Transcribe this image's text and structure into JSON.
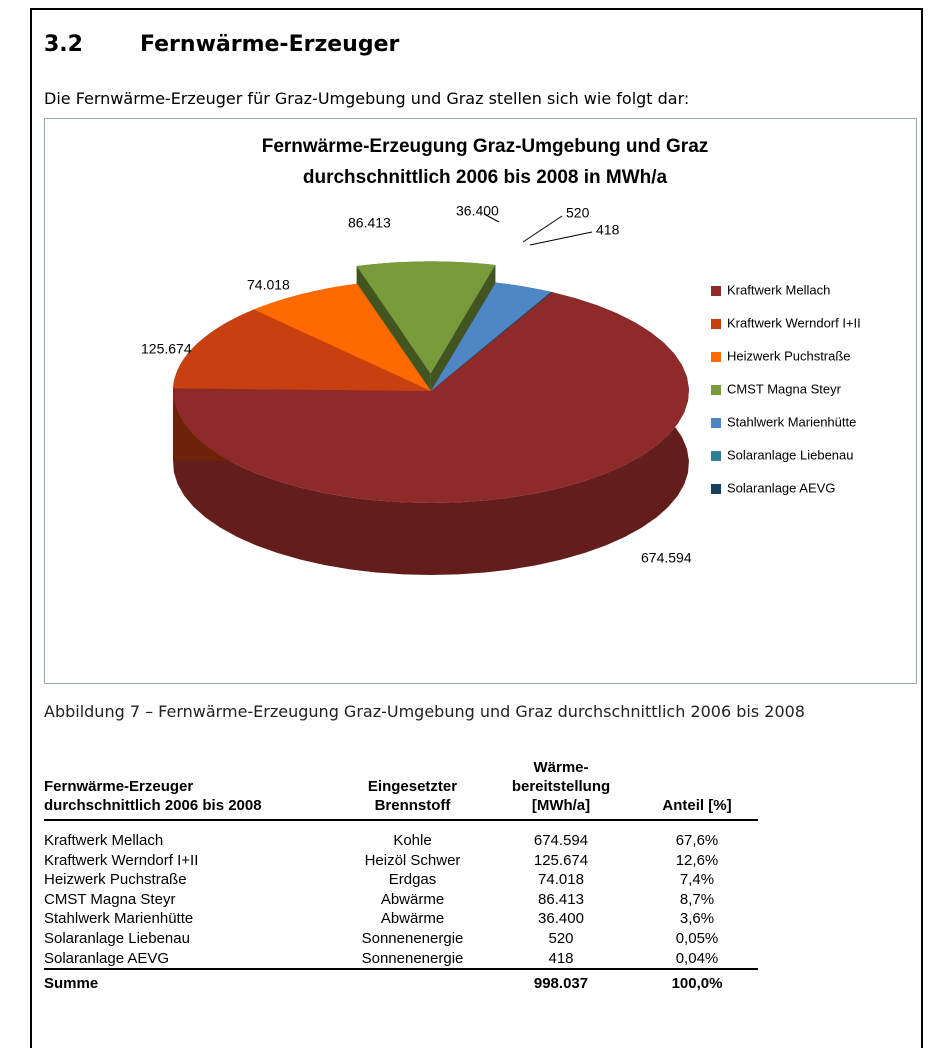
{
  "heading": {
    "number": "3.2",
    "title": "Fernwärme-Erzeuger"
  },
  "intro": "Die Fernwärme-Erzeuger für Graz-Umgebung und Graz stellen sich wie folgt dar:",
  "chart_data": {
    "type": "pie",
    "title": "Fernwärme-Erzeugung Graz-Umgebung und Graz durchschnittlich 2006 bis 2008 in MWh/a",
    "categories": [
      "Kraftwerk Mellach",
      "Kraftwerk Werndorf I+II",
      "Heizwerk Puchstraße",
      "CMST Magna Steyr",
      "Stahlwerk Marienhütte",
      "Solaranlage Liebenau",
      "Solaranlage AEVG"
    ],
    "values": [
      674594,
      125674,
      74018,
      86413,
      36400,
      520,
      418
    ],
    "value_labels": [
      "674.594",
      "125.674",
      "74.018",
      "86.413",
      "36.400",
      "520",
      "418"
    ],
    "colors": [
      "#8e2a2a",
      "#c8400f",
      "#ff6a00",
      "#789a3a",
      "#4f86c6",
      "#31809a",
      "#173f5f"
    ],
    "legend": "right"
  },
  "caption": "Abbildung 7 – Fernwärme-Erzeugung Graz-Umgebung und Graz durchschnittlich 2006 bis 2008",
  "table": {
    "headers": [
      "Fernwärme-Erzeuger\ndurchschnittlich 2006 bis 2008",
      "Eingesetzter\nBrennstoff",
      "Wärme-\nbereitstellung\n[MWh/a]",
      "Anteil [%]"
    ],
    "rows": [
      [
        "Kraftwerk Mellach",
        "Kohle",
        "674.594",
        "67,6%"
      ],
      [
        "Kraftwerk Werndorf I+II",
        "Heizöl Schwer",
        "125.674",
        "12,6%"
      ],
      [
        "Heizwerk Puchstraße",
        "Erdgas",
        "74.018",
        "7,4%"
      ],
      [
        "CMST Magna Steyr",
        "Abwärme",
        "86.413",
        "8,7%"
      ],
      [
        "Stahlwerk Marienhütte",
        "Abwärme",
        "36.400",
        "3,6%"
      ],
      [
        "Solaranlage Liebenau",
        "Sonnenenergie",
        "520",
        "0,05%"
      ],
      [
        "Solaranlage AEVG",
        "Sonnenenergie",
        "418",
        "0,04%"
      ]
    ],
    "total": {
      "label": "Summe",
      "value": "998.037",
      "share": "100,0%"
    }
  }
}
